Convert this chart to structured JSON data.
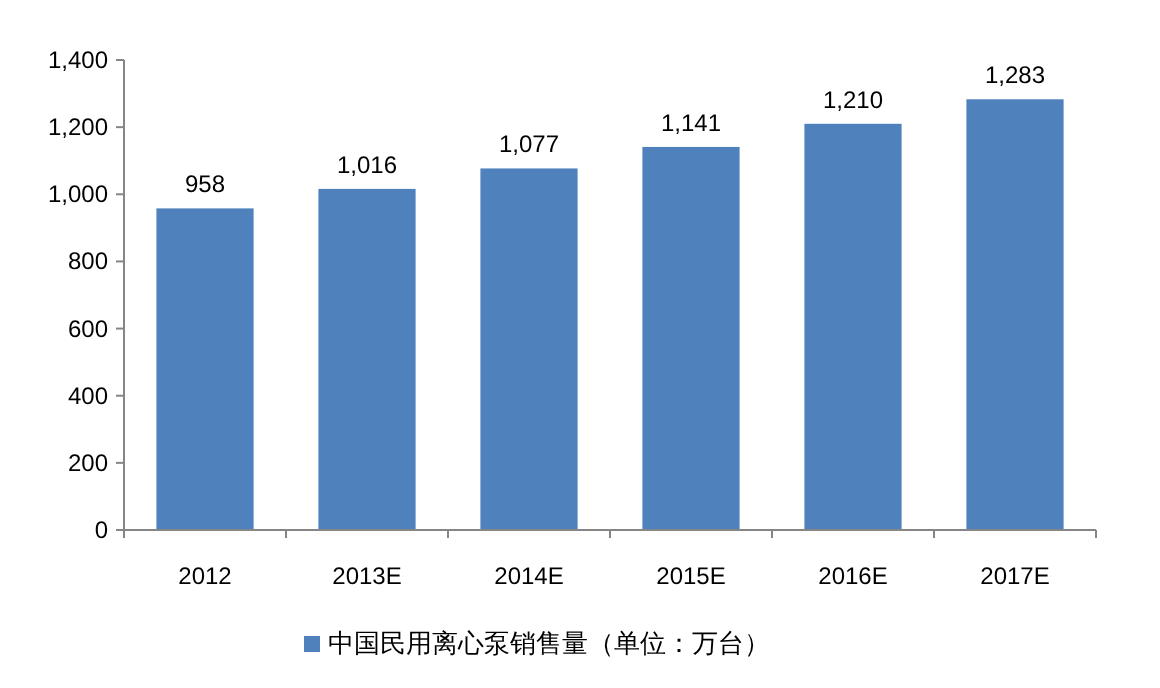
{
  "chart_data": {
    "type": "bar",
    "categories": [
      "2012",
      "2013E",
      "2014E",
      "2015E",
      "2016E",
      "2017E"
    ],
    "series": [
      {
        "name": "中国民用离心泵销售量（单位：万台）",
        "color": "#4f81bd",
        "values": [
          958,
          1016,
          1077,
          1141,
          1210,
          1283
        ],
        "value_labels": [
          "958",
          "1,016",
          "1,077",
          "1,141",
          "1,210",
          "1,283"
        ]
      }
    ],
    "ylim": [
      0,
      1400
    ],
    "yticks": [
      0,
      200,
      400,
      600,
      800,
      {
        "value": 1000,
        "label": "1,000"
      },
      {
        "value": 1200,
        "label": "1,200"
      },
      {
        "value": 1400,
        "label": "1,400"
      }
    ],
    "grid": false,
    "legend": "bottom"
  }
}
